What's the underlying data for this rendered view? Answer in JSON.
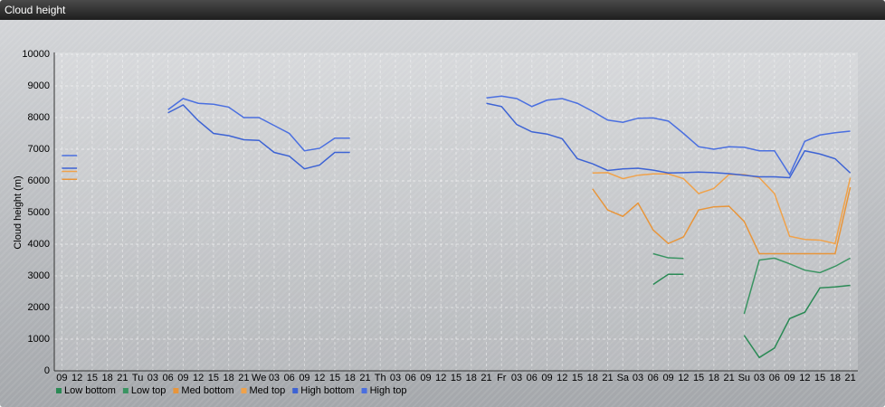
{
  "chart_data": {
    "type": "line",
    "title": "Cloud height",
    "y_label": "Cloud height (m)",
    "categories": [
      "09",
      "12",
      "15",
      "18",
      "21",
      "Tu",
      "03",
      "06",
      "09",
      "12",
      "15",
      "18",
      "21",
      "We",
      "03",
      "06",
      "09",
      "12",
      "15",
      "18",
      "21",
      "Th",
      "03",
      "06",
      "09",
      "12",
      "15",
      "18",
      "21",
      "Fr",
      "03",
      "06",
      "09",
      "12",
      "15",
      "18",
      "21",
      "Sa",
      "03",
      "06",
      "09",
      "12",
      "15",
      "18",
      "21",
      "Su",
      "03",
      "06",
      "09",
      "12",
      "15",
      "18",
      "21"
    ],
    "ylim": [
      0,
      10000
    ],
    "yticks": [
      0,
      1000,
      2000,
      3000,
      4000,
      5000,
      6000,
      7000,
      8000,
      9000,
      10000
    ],
    "grid": true,
    "series": [
      {
        "name": "Low bottom",
        "color": "#2a8a55",
        "values": [
          null,
          null,
          null,
          null,
          null,
          null,
          null,
          null,
          null,
          null,
          null,
          null,
          null,
          null,
          null,
          null,
          null,
          null,
          null,
          null,
          null,
          null,
          null,
          null,
          null,
          null,
          null,
          null,
          null,
          null,
          null,
          null,
          null,
          null,
          null,
          null,
          null,
          null,
          null,
          2730,
          3050,
          3050,
          null,
          null,
          null,
          1120,
          420,
          720,
          1650,
          1850,
          2620,
          2650,
          2700
        ]
      },
      {
        "name": "Low top",
        "color": "#3a9462",
        "values": [
          null,
          null,
          null,
          null,
          null,
          null,
          null,
          null,
          null,
          null,
          null,
          null,
          null,
          null,
          null,
          null,
          null,
          null,
          null,
          null,
          null,
          null,
          null,
          null,
          null,
          null,
          null,
          null,
          null,
          null,
          null,
          null,
          null,
          null,
          null,
          null,
          null,
          null,
          null,
          3700,
          3570,
          3550,
          null,
          null,
          null,
          1800,
          3500,
          3560,
          3380,
          3180,
          3100,
          3300,
          3560
        ]
      },
      {
        "name": "Med bottom",
        "color": "#e8953a",
        "values": [
          6050,
          6050,
          null,
          null,
          null,
          null,
          null,
          null,
          null,
          null,
          null,
          null,
          null,
          null,
          null,
          null,
          null,
          null,
          null,
          null,
          null,
          null,
          null,
          null,
          null,
          null,
          null,
          null,
          null,
          null,
          null,
          null,
          null,
          null,
          null,
          5750,
          5080,
          4880,
          5300,
          4450,
          4020,
          4230,
          5080,
          5180,
          5200,
          4720,
          3700,
          3700,
          3700,
          3700,
          3700,
          3700,
          5800
        ]
      },
      {
        "name": "Med top",
        "color": "#f0a24a",
        "values": [
          6300,
          6300,
          null,
          null,
          null,
          null,
          null,
          null,
          null,
          null,
          null,
          null,
          null,
          null,
          null,
          null,
          null,
          null,
          null,
          null,
          null,
          null,
          null,
          null,
          null,
          null,
          null,
          null,
          null,
          null,
          null,
          null,
          null,
          null,
          null,
          6250,
          6260,
          6070,
          6180,
          6220,
          6220,
          6070,
          5600,
          5760,
          6200,
          6200,
          6100,
          5600,
          4250,
          4150,
          4130,
          4020,
          6100
        ]
      },
      {
        "name": "High bottom",
        "color": "#3d63d4",
        "values": [
          6400,
          6400,
          null,
          null,
          null,
          null,
          null,
          8150,
          8400,
          7900,
          7500,
          7430,
          7300,
          7280,
          6900,
          6780,
          6380,
          6500,
          6900,
          6900,
          null,
          null,
          null,
          null,
          null,
          null,
          null,
          null,
          8450,
          8350,
          7780,
          7550,
          7480,
          7330,
          6700,
          6540,
          6330,
          6380,
          6400,
          6340,
          6250,
          6260,
          6280,
          6260,
          6230,
          6180,
          6130,
          6130,
          6100,
          6950,
          6850,
          6700,
          6250
        ]
      },
      {
        "name": "High top",
        "color": "#4a6fe0",
        "values": [
          6800,
          6800,
          null,
          null,
          null,
          null,
          null,
          8250,
          8600,
          8450,
          8420,
          8330,
          8000,
          8000,
          7750,
          7500,
          6950,
          7030,
          7350,
          7350,
          null,
          null,
          null,
          null,
          null,
          null,
          null,
          null,
          8620,
          8680,
          8600,
          8350,
          8550,
          8600,
          8450,
          8200,
          7920,
          7850,
          7980,
          7990,
          7890,
          7500,
          7080,
          7000,
          7080,
          7060,
          6950,
          6950,
          6200,
          7250,
          7450,
          7520,
          7570
        ]
      }
    ]
  }
}
